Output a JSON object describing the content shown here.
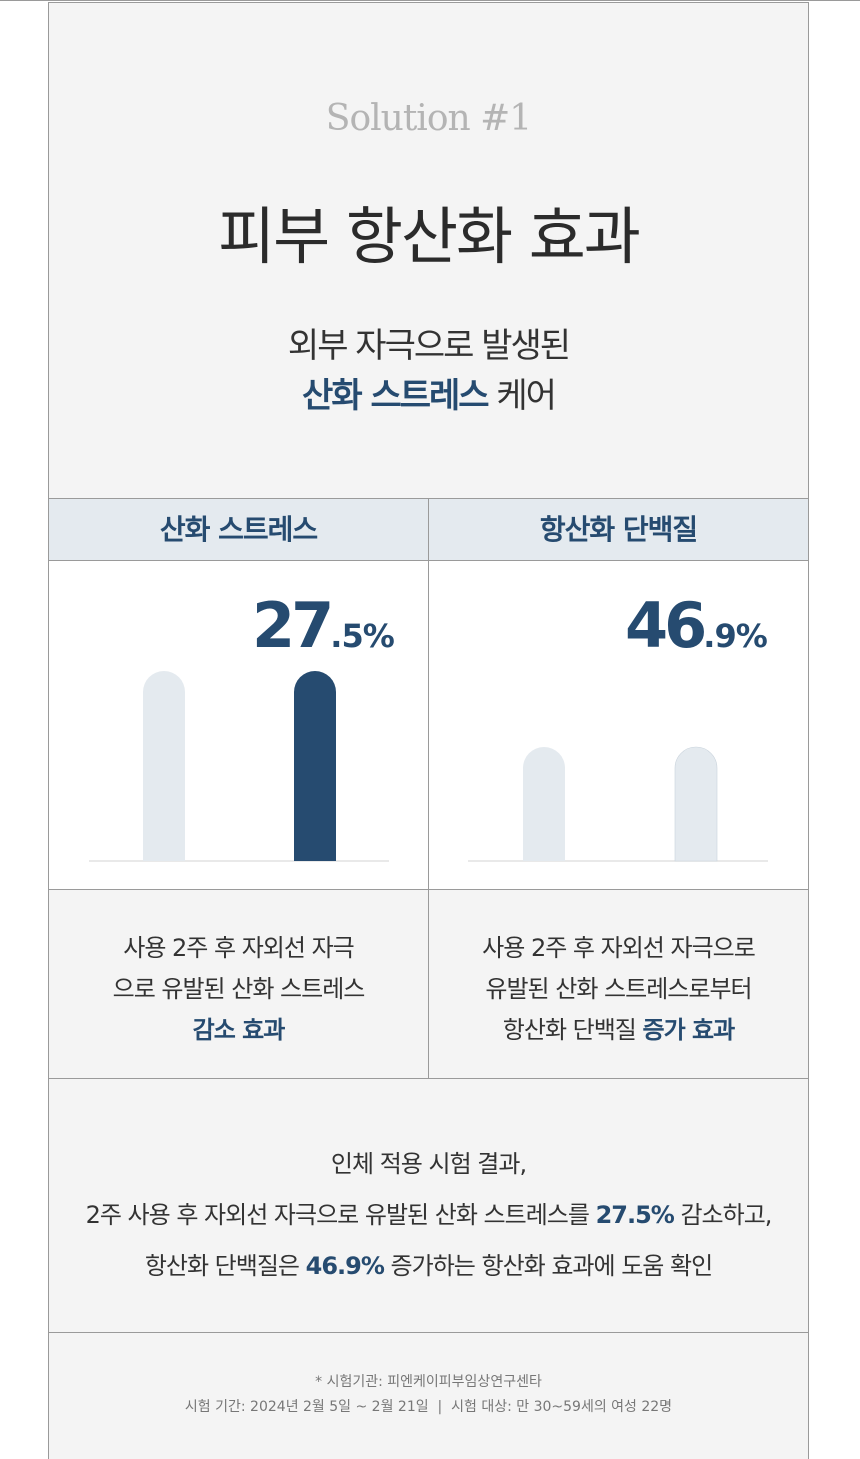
{
  "hero": {
    "eyebrow": "Solution #1",
    "title": "피부 항산화 효과",
    "subtitle_line1": "외부 자극으로 발생된",
    "subtitle_accent": "산화 스트레스",
    "subtitle_tail": " 케어"
  },
  "columns": [
    {
      "header": "산화 스트레스",
      "pct_major": "27",
      "pct_minor": ".5%",
      "bars": [
        100,
        100
      ],
      "desc_line1": "사용 2주 후 자외선 자극",
      "desc_line2": "으로 유발된 산화 스트레스",
      "desc_line3_plain": "",
      "desc_line3_accent": "감소 효과"
    },
    {
      "header": "항산화 단백질",
      "pct_major": "46",
      "pct_minor": ".9%",
      "bars": [
        60,
        60
      ],
      "desc_line1": "사용 2주 후 자외선 자극으로",
      "desc_line2": "유발된 산화 스트레스로부터",
      "desc_line3_plain": "항산화 단백질 ",
      "desc_line3_accent": "증가 효과"
    }
  ],
  "summary": {
    "line1": "인체 적용 시험 결과,",
    "line2_a": "2주 사용 후 자외선 자극으로 유발된 산화 스트레스를 ",
    "line2_accent": "27.5%",
    "line2_b": " 감소하고,",
    "line3_a": "항산화 단백질은 ",
    "line3_accent": "46.9%",
    "line3_b": " 증가하는 항산화 효과에 도움 확인"
  },
  "notes": {
    "line1": "* 시험기관: 피엔케이피부임상연구센타",
    "line2": "시험 기간: 2024년 2월 5일 ~ 2월 21일  |  시험 대상: 만 30~59세의 여성 22명"
  },
  "colors": {
    "accent": "#264b70",
    "bar_light": "#e4eaef",
    "background": "#f4f4f4"
  }
}
